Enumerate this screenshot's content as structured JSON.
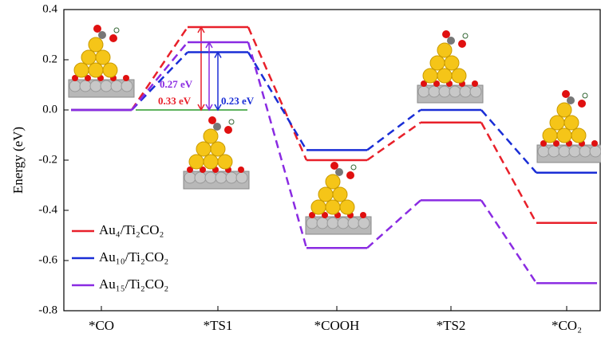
{
  "chart_data": {
    "type": "energy-profile",
    "y_label": "Energy (eV)",
    "categories": [
      "*CO",
      "*TS1",
      "*COOH",
      "*TS2",
      "*CO₂"
    ],
    "series": [
      {
        "name": "Au₄/Ti₂CO₂",
        "color": "#e8202a",
        "values": [
          0,
          0.33,
          -0.2,
          -0.05,
          -0.45
        ],
        "value_labels": [
          null,
          "0.33 eV",
          null,
          null,
          null
        ]
      },
      {
        "name": "Au₁₀/Ti₂CO₂",
        "color": "#1a2ed6",
        "values": [
          0,
          0.23,
          -0.16,
          0,
          -0.25
        ],
        "value_labels": [
          null,
          "0.23 eV",
          null,
          null,
          null
        ]
      },
      {
        "name": "Au₁₅/Ti₂CO₂",
        "color": "#8a2be2",
        "values": [
          0,
          0.27,
          -0.55,
          -0.36,
          -0.69
        ],
        "value_labels": [
          null,
          "0.27 eV",
          null,
          null,
          null
        ]
      }
    ],
    "ylim": [
      -0.8,
      0.4
    ],
    "yticks": [
      0.4,
      0.2,
      {
        "value": 0,
        "label": "0.0"
      },
      -0.2,
      -0.4,
      -0.6,
      -0.8
    ],
    "legend": "lower left"
  }
}
